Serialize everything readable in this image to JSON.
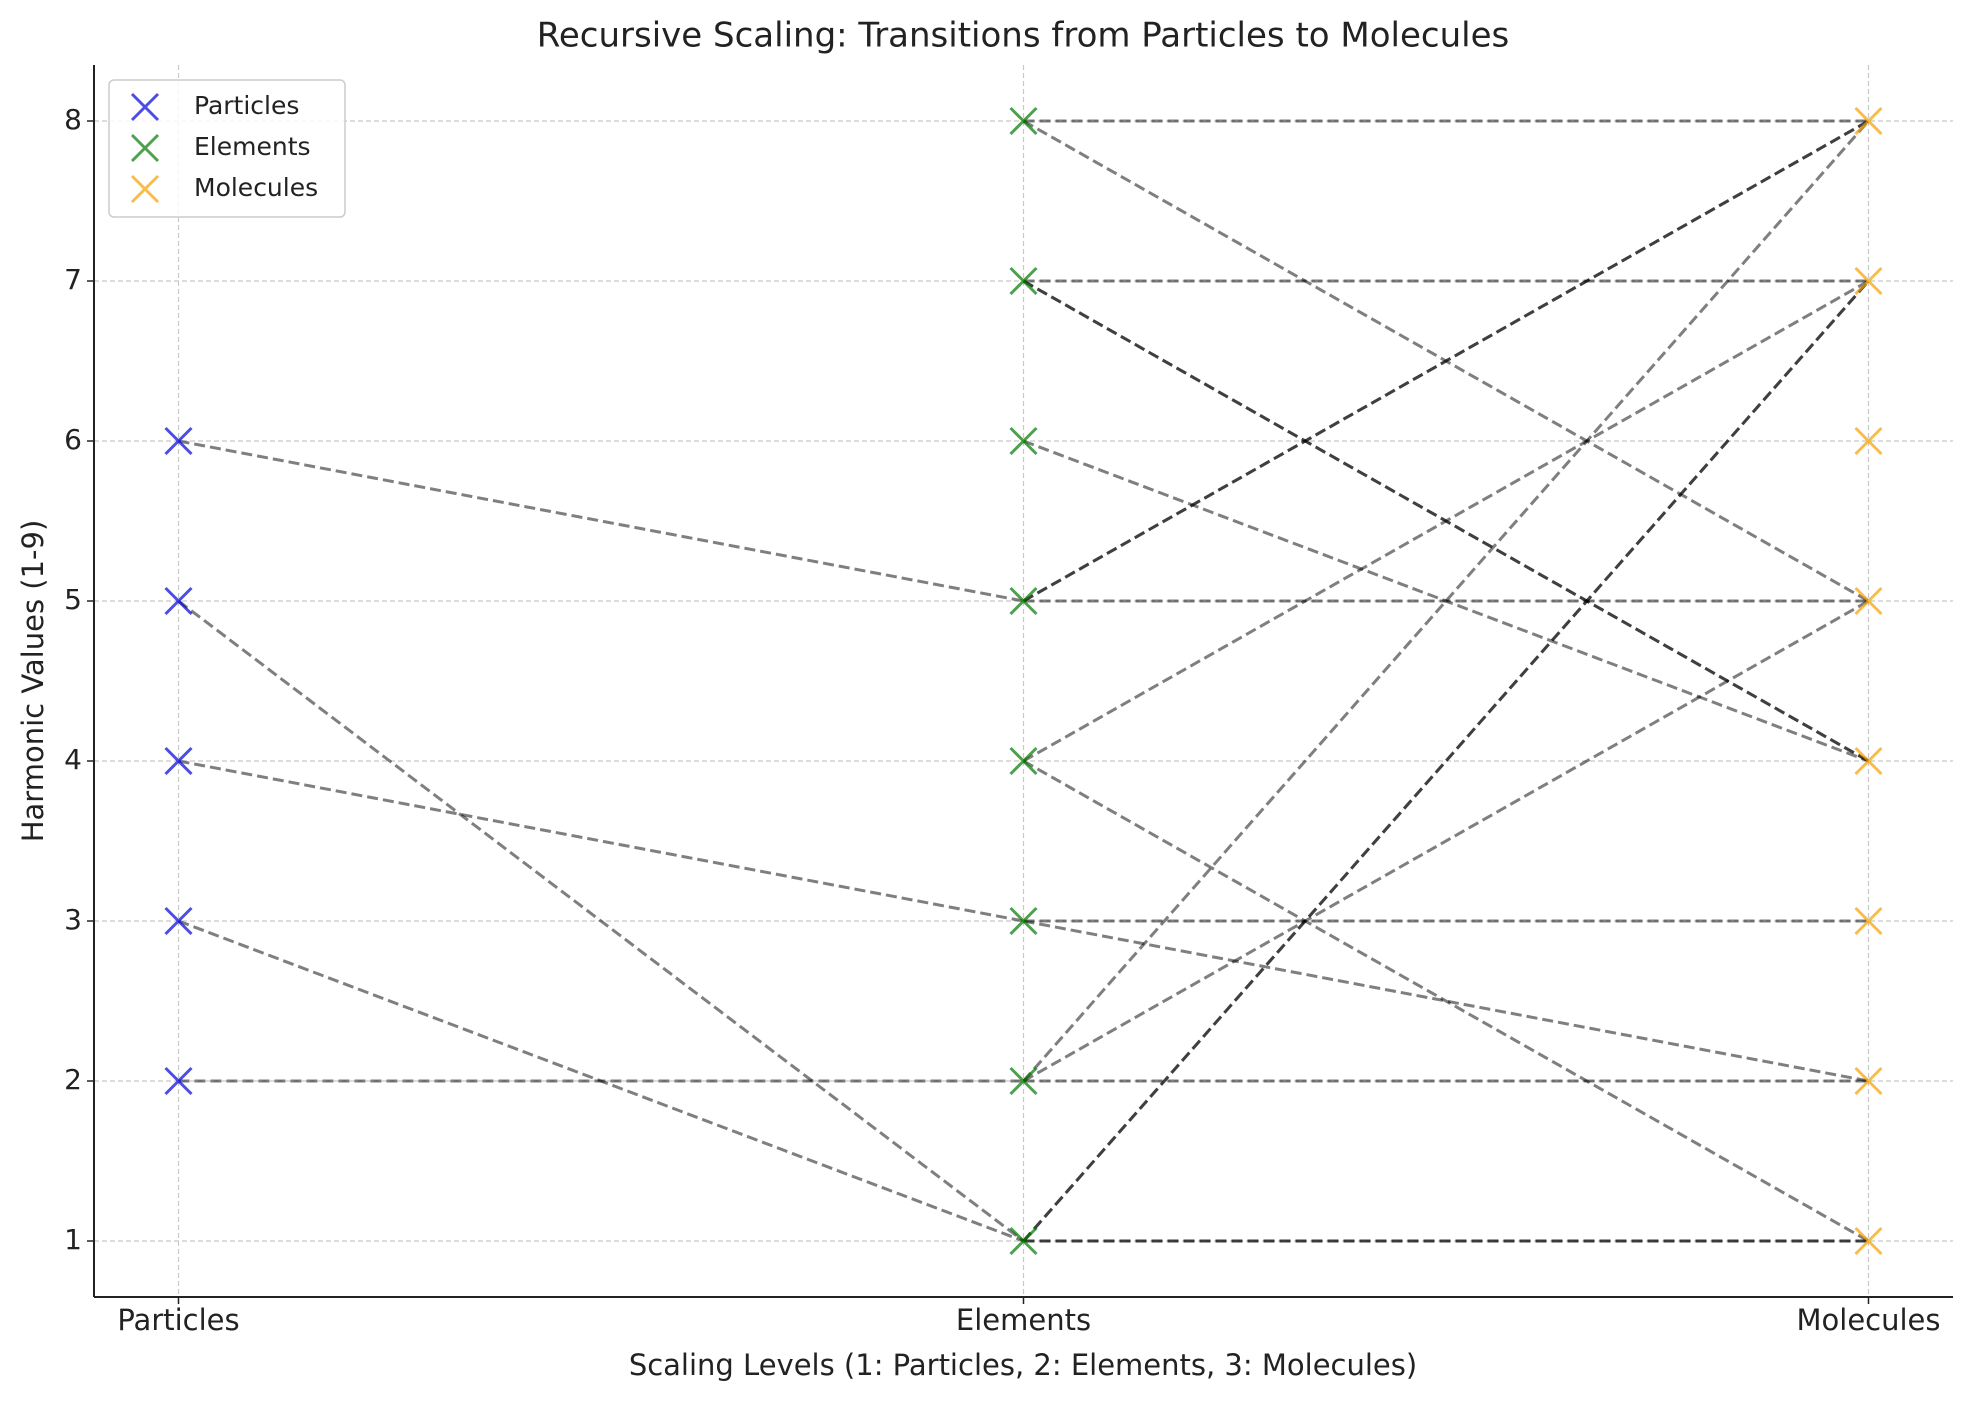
{
  "chart_data": {
    "type": "scatter",
    "title": "Recursive Scaling: Transitions from Particles to Molecules",
    "x_label": "Scaling Levels (1: Particles, 2: Elements, 3: Molecules)",
    "y_label": "Harmonic Values (1-9)",
    "xlim": [
      0.9,
      3.1
    ],
    "ylim": [
      0.65,
      8.35
    ],
    "xticks": [
      {
        "value": 1,
        "label": "Particles"
      },
      {
        "value": 2,
        "label": "Elements"
      },
      {
        "value": 3,
        "label": "Molecules"
      }
    ],
    "yticks": [
      1,
      2,
      3,
      4,
      5,
      6,
      7,
      8
    ],
    "grid": true,
    "legend": "upper left",
    "series": [
      {
        "name": "Particles",
        "color": "#0000dd",
        "x": [
          1,
          1,
          1,
          1,
          1
        ],
        "values": [
          2,
          3,
          4,
          5,
          6
        ]
      },
      {
        "name": "Elements",
        "color": "#007a00",
        "x": [
          2,
          2,
          2,
          2,
          2,
          2,
          2,
          2
        ],
        "values": [
          1,
          2,
          3,
          4,
          5,
          6,
          7,
          8
        ]
      },
      {
        "name": "Molecules",
        "color": "#f5a000",
        "x": [
          3,
          3,
          3,
          3,
          3,
          3,
          3,
          3
        ],
        "values": [
          1,
          2,
          3,
          4,
          5,
          6,
          7,
          8
        ]
      }
    ],
    "link_color": "#000000",
    "links": [
      {
        "x": [
          1,
          2
        ],
        "y": [
          6,
          5
        ]
      },
      {
        "x": [
          1,
          2
        ],
        "y": [
          5,
          1
        ]
      },
      {
        "x": [
          1,
          2
        ],
        "y": [
          4,
          3
        ]
      },
      {
        "x": [
          1,
          2
        ],
        "y": [
          3,
          1
        ]
      },
      {
        "x": [
          1,
          2
        ],
        "y": [
          2,
          2
        ]
      },
      {
        "x": [
          2,
          3
        ],
        "y": [
          8,
          8
        ]
      },
      {
        "x": [
          2,
          3
        ],
        "y": [
          8,
          5
        ]
      },
      {
        "x": [
          2,
          3
        ],
        "y": [
          7,
          7
        ]
      },
      {
        "x": [
          2,
          3
        ],
        "y": [
          7,
          4
        ]
      },
      {
        "x": [
          2,
          3
        ],
        "y": [
          7,
          4
        ]
      },
      {
        "x": [
          2,
          3
        ],
        "y": [
          6,
          4
        ]
      },
      {
        "x": [
          2,
          3
        ],
        "y": [
          5,
          8
        ]
      },
      {
        "x": [
          2,
          3
        ],
        "y": [
          5,
          8
        ]
      },
      {
        "x": [
          2,
          3
        ],
        "y": [
          5,
          5
        ]
      },
      {
        "x": [
          2,
          3
        ],
        "y": [
          4,
          7
        ]
      },
      {
        "x": [
          2,
          3
        ],
        "y": [
          4,
          1
        ]
      },
      {
        "x": [
          2,
          3
        ],
        "y": [
          3,
          3
        ]
      },
      {
        "x": [
          2,
          3
        ],
        "y": [
          3,
          2
        ]
      },
      {
        "x": [
          2,
          3
        ],
        "y": [
          2,
          8
        ]
      },
      {
        "x": [
          2,
          3
        ],
        "y": [
          2,
          5
        ]
      },
      {
        "x": [
          2,
          3
        ],
        "y": [
          2,
          2
        ]
      },
      {
        "x": [
          2,
          3
        ],
        "y": [
          1,
          7
        ]
      },
      {
        "x": [
          2,
          3
        ],
        "y": [
          1,
          7
        ]
      },
      {
        "x": [
          2,
          3
        ],
        "y": [
          1,
          1
        ]
      },
      {
        "x": [
          2,
          3
        ],
        "y": [
          1,
          1
        ]
      }
    ]
  }
}
